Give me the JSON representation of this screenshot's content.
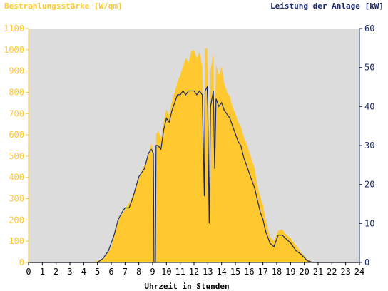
{
  "chart_data": {
    "type": "area",
    "title": "",
    "ylabel_left": "Bestrahlungsstärke [W/qm]",
    "ylabel_right": "Leistung der Anlage [kW]",
    "xlabel": "Uhrzeit in Stunden",
    "xlim": [
      0,
      24
    ],
    "ylim_left": [
      0,
      1100
    ],
    "ylim_right": [
      0,
      60
    ],
    "x_ticks": [
      "0",
      "1",
      "2",
      "3",
      "4",
      "5",
      "6",
      "7",
      "8",
      "9",
      "10",
      "11",
      "12",
      "13",
      "14",
      "15",
      "16",
      "17",
      "18",
      "19",
      "20",
      "21",
      "22",
      "23",
      "24"
    ],
    "y_left_ticks": [
      "0",
      "100",
      "200",
      "300",
      "400",
      "500",
      "600",
      "700",
      "800",
      "900",
      "1000",
      "1100"
    ],
    "y_right_ticks": [
      "0",
      "10",
      "20",
      "30",
      "40",
      "50",
      "60"
    ],
    "grid": false,
    "background_color": "#dcdcdc",
    "series": [
      {
        "name": "Bestrahlungsstärke",
        "axis": "left",
        "style": "filled-area",
        "color": "#ffc82e",
        "points": [
          [
            0,
            0
          ],
          [
            4.6,
            0
          ],
          [
            5.0,
            8
          ],
          [
            5.5,
            22
          ],
          [
            6.0,
            70
          ],
          [
            6.3,
            150
          ],
          [
            6.6,
            210
          ],
          [
            7.0,
            250
          ],
          [
            7.4,
            290
          ],
          [
            7.8,
            360
          ],
          [
            8.2,
            430
          ],
          [
            8.6,
            480
          ],
          [
            8.9,
            560
          ],
          [
            9.05,
            520
          ],
          [
            9.1,
            10
          ],
          [
            9.2,
            0
          ],
          [
            9.25,
            600
          ],
          [
            9.4,
            620
          ],
          [
            9.6,
            580
          ],
          [
            9.8,
            660
          ],
          [
            10.0,
            720
          ],
          [
            10.2,
            690
          ],
          [
            10.4,
            760
          ],
          [
            10.6,
            800
          ],
          [
            10.8,
            850
          ],
          [
            11.0,
            880
          ],
          [
            11.2,
            920
          ],
          [
            11.4,
            960
          ],
          [
            11.6,
            940
          ],
          [
            11.8,
            990
          ],
          [
            12.0,
            1000
          ],
          [
            12.2,
            960
          ],
          [
            12.4,
            990
          ],
          [
            12.6,
            920
          ],
          [
            12.75,
            540
          ],
          [
            12.8,
            1000
          ],
          [
            12.95,
            1010
          ],
          [
            13.0,
            830
          ],
          [
            13.1,
            560
          ],
          [
            13.2,
            900
          ],
          [
            13.4,
            980
          ],
          [
            13.5,
            600
          ],
          [
            13.6,
            930
          ],
          [
            13.8,
            880
          ],
          [
            14.0,
            920
          ],
          [
            14.2,
            840
          ],
          [
            14.4,
            800
          ],
          [
            14.6,
            780
          ],
          [
            14.8,
            730
          ],
          [
            15.0,
            700
          ],
          [
            15.2,
            660
          ],
          [
            15.4,
            640
          ],
          [
            15.6,
            590
          ],
          [
            15.8,
            560
          ],
          [
            16.0,
            520
          ],
          [
            16.2,
            480
          ],
          [
            16.4,
            440
          ],
          [
            16.6,
            360
          ],
          [
            16.8,
            310
          ],
          [
            17.0,
            270
          ],
          [
            17.2,
            200
          ],
          [
            17.5,
            120
          ],
          [
            17.8,
            100
          ],
          [
            18.1,
            150
          ],
          [
            18.4,
            155
          ],
          [
            18.7,
            130
          ],
          [
            19.0,
            115
          ],
          [
            19.4,
            80
          ],
          [
            19.8,
            45
          ],
          [
            20.2,
            15
          ],
          [
            20.6,
            2
          ],
          [
            21.0,
            0
          ],
          [
            24,
            0
          ]
        ]
      },
      {
        "name": "Leistung der Anlage",
        "axis": "right",
        "style": "line",
        "color": "#1a2a6c",
        "points": [
          [
            0,
            0
          ],
          [
            5.0,
            0
          ],
          [
            5.4,
            1
          ],
          [
            5.8,
            3
          ],
          [
            6.2,
            7
          ],
          [
            6.5,
            11
          ],
          [
            6.8,
            13
          ],
          [
            7.0,
            14
          ],
          [
            7.3,
            14
          ],
          [
            7.6,
            17
          ],
          [
            8.0,
            22
          ],
          [
            8.4,
            24
          ],
          [
            8.7,
            28
          ],
          [
            8.9,
            29
          ],
          [
            9.05,
            28
          ],
          [
            9.1,
            0
          ],
          [
            9.2,
            0
          ],
          [
            9.25,
            30
          ],
          [
            9.4,
            30
          ],
          [
            9.6,
            29
          ],
          [
            9.8,
            34
          ],
          [
            10.0,
            37
          ],
          [
            10.2,
            36
          ],
          [
            10.4,
            39
          ],
          [
            10.6,
            41
          ],
          [
            10.8,
            43
          ],
          [
            11.0,
            43
          ],
          [
            11.2,
            44
          ],
          [
            11.4,
            43
          ],
          [
            11.6,
            44
          ],
          [
            11.8,
            44
          ],
          [
            12.0,
            44
          ],
          [
            12.2,
            43
          ],
          [
            12.4,
            44
          ],
          [
            12.6,
            43
          ],
          [
            12.75,
            17
          ],
          [
            12.8,
            44
          ],
          [
            12.95,
            45
          ],
          [
            13.0,
            40
          ],
          [
            13.1,
            10
          ],
          [
            13.2,
            40
          ],
          [
            13.4,
            44
          ],
          [
            13.5,
            24
          ],
          [
            13.6,
            42
          ],
          [
            13.8,
            40
          ],
          [
            14.0,
            41
          ],
          [
            14.2,
            39
          ],
          [
            14.4,
            38
          ],
          [
            14.6,
            37
          ],
          [
            14.8,
            35
          ],
          [
            15.0,
            33
          ],
          [
            15.2,
            31
          ],
          [
            15.4,
            30
          ],
          [
            15.6,
            27
          ],
          [
            15.8,
            25
          ],
          [
            16.0,
            23
          ],
          [
            16.2,
            21
          ],
          [
            16.4,
            19
          ],
          [
            16.6,
            16
          ],
          [
            16.8,
            13
          ],
          [
            17.0,
            11
          ],
          [
            17.2,
            8
          ],
          [
            17.5,
            5
          ],
          [
            17.8,
            4
          ],
          [
            18.1,
            7
          ],
          [
            18.4,
            7
          ],
          [
            18.7,
            6
          ],
          [
            19.0,
            5
          ],
          [
            19.4,
            3
          ],
          [
            19.8,
            2
          ],
          [
            20.2,
            0.5
          ],
          [
            20.6,
            0
          ],
          [
            24,
            0
          ]
        ]
      }
    ]
  }
}
